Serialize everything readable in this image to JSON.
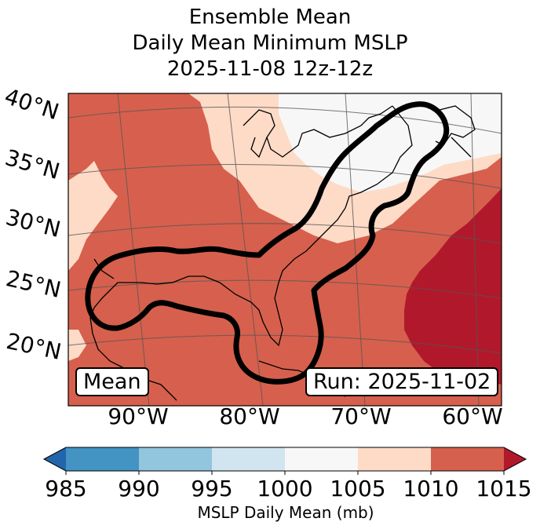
{
  "title": {
    "line1": "Ensemble Mean",
    "line2": "Daily Mean Minimum MSLP",
    "line3": "2025-11-08 12z-12z"
  },
  "map": {
    "lat_labels": [
      "40°N",
      "35°N",
      "30°N",
      "25°N",
      "20°N"
    ],
    "lon_labels": [
      "90°W",
      "80°W",
      "70°W",
      "60°W"
    ],
    "mean_box": "Mean",
    "run_box": "Run: 2025-11-02",
    "contour_color": "#000000"
  },
  "colorbar": {
    "ticks": [
      "985",
      "990",
      "995",
      "1000",
      "1005",
      "1010",
      "1015"
    ],
    "colors": [
      "#2166ac",
      "#4393c3",
      "#92c5de",
      "#d1e5f0",
      "#f7f7f7",
      "#fddbc7",
      "#d6604d",
      "#b2182b"
    ],
    "label": "MSLP Daily Mean (mb)"
  }
}
